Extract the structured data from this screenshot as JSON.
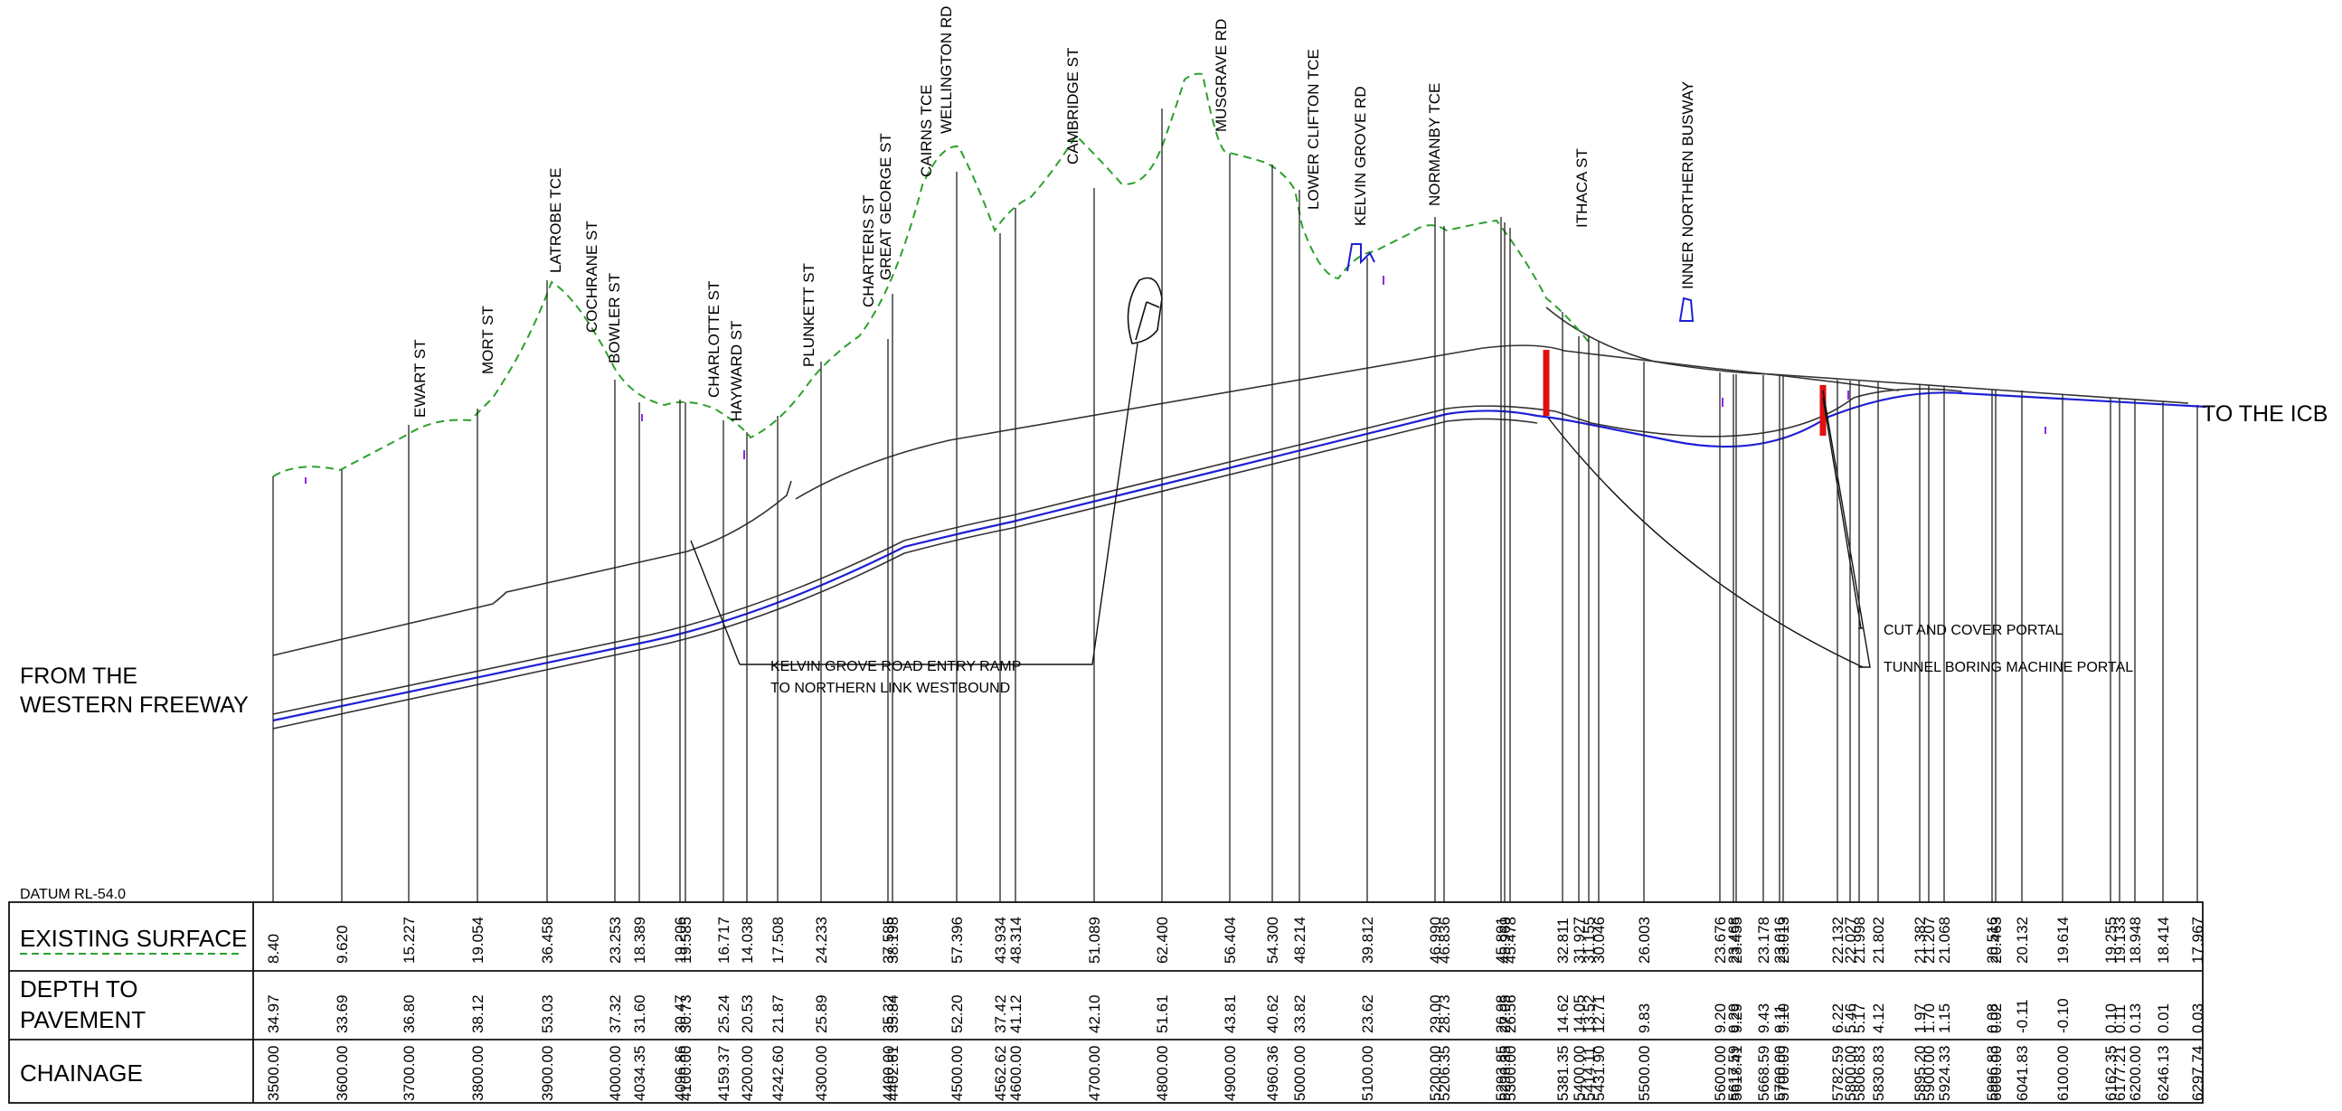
{
  "labels": {
    "from": [
      "FROM THE",
      "WESTERN FREEWAY"
    ],
    "to": "TO THE ICB",
    "datum": "DATUM RL-54.0",
    "ramp": [
      "KELVIN GROVE ROAD ENTRY RAMP",
      "TO NORTHERN LINK WESTBOUND"
    ],
    "cut_cover": "CUT AND COVER PORTAL",
    "tbm": "TUNNEL BORING MACHINE PORTAL"
  },
  "table": {
    "existing_surface_label": "EXISTING SURFACE",
    "depth_label": [
      "DEPTH TO",
      "PAVEMENT"
    ],
    "chainage_label": "CHAINAGE"
  },
  "streets": [
    "EWART ST",
    "MORT ST",
    "LATROBE TCE",
    "COCHRANE ST",
    "BOWLER ST",
    "CHARLOTTE ST",
    "HAYWARD ST",
    "PLUNKETT ST",
    "CHARTERIS ST",
    "GREAT GEORGE ST",
    "CAIRNS TCE",
    "WELLINGTON RD",
    "CAMBRIDGE ST",
    "MUSGRAVE RD",
    "LOWER CLIFTON TCE",
    "KELVIN GROVE RD",
    "NORMANBY TCE",
    "ITHACA ST",
    "INNER NORTHERN BUSWAY"
  ],
  "rows": [
    {
      "chainage": "3500.00",
      "surface": "8.40",
      "depth": "34.97"
    },
    {
      "chainage": "3600.00",
      "surface": "9.620",
      "depth": "33.69"
    },
    {
      "chainage": "3700.00",
      "surface": "15.227",
      "depth": "36.80"
    },
    {
      "chainage": "3800.00",
      "surface": "19.054",
      "depth": "38.12"
    },
    {
      "chainage": "3900.00",
      "surface": "36.458",
      "depth": "53.03"
    },
    {
      "chainage": "4000.00",
      "surface": "23.253",
      "depth": "37.32"
    },
    {
      "chainage": "4034.35",
      "surface": "18.389",
      "depth": "31.60"
    },
    {
      "chainage": "4096.86",
      "surface": "19.206",
      "depth": "30.47"
    },
    {
      "chainage": "4100.00",
      "surface": "19.585",
      "depth": "30.73"
    },
    {
      "chainage": "4159.37",
      "surface": "16.717",
      "depth": "25.24"
    },
    {
      "chainage": "4200.00",
      "surface": "14.038",
      "depth": "20.53"
    },
    {
      "chainage": "4242.60",
      "surface": "17.508",
      "depth": "21.87"
    },
    {
      "chainage": "4300.00",
      "surface": "24.233",
      "depth": "25.89"
    },
    {
      "chainage": "4400.00",
      "surface": "37.585",
      "depth": "35.32"
    },
    {
      "chainage": "4402.61",
      "surface": "38.198",
      "depth": "35.84"
    },
    {
      "chainage": "4500.00",
      "surface": "57.396",
      "depth": "52.20"
    },
    {
      "chainage": "4562.62",
      "surface": "43.934",
      "depth": "37.42"
    },
    {
      "chainage": "4600.00",
      "surface": "48.314",
      "depth": "41.12"
    },
    {
      "chainage": "4700.00",
      "surface": "51.089",
      "depth": "42.10"
    },
    {
      "chainage": "4800.00",
      "surface": "62.400",
      "depth": "51.61"
    },
    {
      "chainage": "4900.00",
      "surface": "56.404",
      "depth": "43.81"
    },
    {
      "chainage": "4960.36",
      "surface": "54.300",
      "depth": "40.62"
    },
    {
      "chainage": "5000.00",
      "surface": "48.214",
      "depth": "33.82"
    },
    {
      "chainage": "5100.00",
      "surface": "39.812",
      "depth": "23.62"
    },
    {
      "chainage": "5200.00",
      "surface": "46.990",
      "depth": "29.00"
    },
    {
      "chainage": "5206.35",
      "surface": "46.836",
      "depth": "28.73"
    },
    {
      "chainage": "5293.85",
      "surface": "45.891",
      "depth": "26.98"
    },
    {
      "chainage": "5296.35",
      "surface": "45.969",
      "depth": "27.05"
    },
    {
      "chainage": "5300.00",
      "surface": "45.478",
      "depth": "26.56"
    },
    {
      "chainage": "5381.35",
      "surface": "32.811",
      "depth": "14.62"
    },
    {
      "chainage": "5400.00",
      "surface": "31.927",
      "depth": "14.05"
    },
    {
      "chainage": "5414.11",
      "surface": "31.155",
      "depth": "13.52"
    },
    {
      "chainage": "5431.90",
      "surface": "30.046",
      "depth": "12.71"
    },
    {
      "chainage": "5500.00",
      "surface": "26.003",
      "depth": "9.83"
    },
    {
      "chainage": "5600.00",
      "surface": "23.676",
      "depth": "9.20"
    },
    {
      "chainage": "5617.59",
      "surface": "23.468",
      "depth": "9.29"
    },
    {
      "chainage": "5618.41",
      "surface": "23.455",
      "depth": "9.29"
    },
    {
      "chainage": "5668.59",
      "surface": "23.178",
      "depth": "9.43"
    },
    {
      "chainage": "5700.00",
      "surface": "23.016",
      "depth": "9.11"
    },
    {
      "chainage": "5700.09",
      "surface": "23.013",
      "depth": "9.10"
    },
    {
      "chainage": "5782.59",
      "surface": "22.132",
      "depth": "6.22"
    },
    {
      "chainage": "5800.00",
      "surface": "22.027",
      "depth": "5.46"
    },
    {
      "chainage": "5806.83",
      "surface": "21.998",
      "depth": "5.17"
    },
    {
      "chainage": "5830.83",
      "surface": "21.802",
      "depth": "4.12"
    },
    {
      "chainage": "5895.20",
      "surface": "21.382",
      "depth": "1.97"
    },
    {
      "chainage": "5900.00",
      "surface": "21.207",
      "depth": "1.70"
    },
    {
      "chainage": "5924.33",
      "surface": "21.068",
      "depth": "1.15"
    },
    {
      "chainage": "5996.83",
      "surface": "20.516",
      "depth": "0.08"
    },
    {
      "chainage": "6000.00",
      "surface": "20.463",
      "depth": "0.02"
    },
    {
      "chainage": "6041.83",
      "surface": "20.132",
      "depth": "-0.11"
    },
    {
      "chainage": "6100.00",
      "surface": "19.614",
      "depth": "-0.10"
    },
    {
      "chainage": "6162.35",
      "surface": "19.255",
      "depth": "0.10"
    },
    {
      "chainage": "6177.21",
      "surface": "19.133",
      "depth": "0.11"
    },
    {
      "chainage": "6200.00",
      "surface": "18.948",
      "depth": "0.13"
    },
    {
      "chainage": "6246.13",
      "surface": "18.414",
      "depth": "0.01"
    },
    {
      "chainage": "6297.74",
      "surface": "17.967",
      "depth": "0.03"
    }
  ],
  "colors": {
    "surface": "#2ca02c",
    "alignment": "#1f1fd6",
    "portal": "#e01010",
    "line": "#333333"
  }
}
